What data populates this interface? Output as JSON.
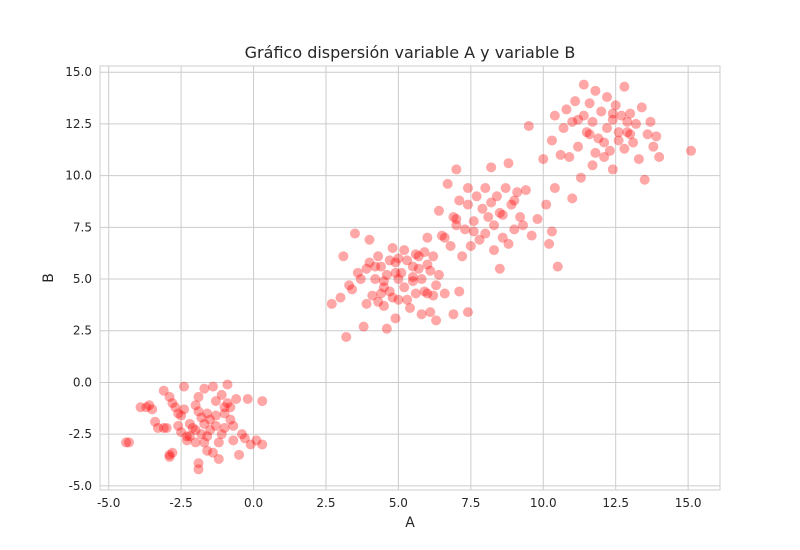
{
  "chart_data": {
    "type": "scatter",
    "title": "Gráfico dispersión variable A y variable B",
    "xlabel": "A",
    "ylabel": "B",
    "xlim": [
      -5.3,
      16.1
    ],
    "ylim": [
      -5.2,
      15.3
    ],
    "xticks": [
      "-5.0",
      "-2.5",
      "0.0",
      "2.5",
      "5.0",
      "7.5",
      "10.0",
      "12.5",
      "15.0"
    ],
    "yticks": [
      "-5.0",
      "-2.5",
      "0.0",
      "2.5",
      "5.0",
      "7.5",
      "10.0",
      "12.5",
      "15.0"
    ],
    "grid": true,
    "marker_color": "#ff0000",
    "marker_alpha": 0.35,
    "series": [
      {
        "points": [
          [
            -4.4,
            -2.9
          ],
          [
            -4.3,
            -2.9
          ],
          [
            -3.9,
            -1.2
          ],
          [
            -3.7,
            -1.2
          ],
          [
            -3.6,
            -1.1
          ],
          [
            -3.5,
            -1.3
          ],
          [
            -3.3,
            -2.2
          ],
          [
            -3.1,
            -0.4
          ],
          [
            -3.0,
            -2.2
          ],
          [
            -2.9,
            -3.5
          ],
          [
            -2.9,
            -3.6
          ],
          [
            -2.8,
            -3.4
          ],
          [
            -2.9,
            -0.7
          ],
          [
            -2.8,
            -1.0
          ],
          [
            -2.6,
            -2.1
          ],
          [
            -2.5,
            -1.6
          ],
          [
            -2.5,
            -2.4
          ],
          [
            -2.4,
            -0.2
          ],
          [
            -2.4,
            -1.3
          ],
          [
            -2.3,
            -2.8
          ],
          [
            -2.2,
            -2.6
          ],
          [
            -2.1,
            -2.2
          ],
          [
            -2.0,
            -2.9
          ],
          [
            -2.0,
            -1.1
          ],
          [
            -1.9,
            -0.7
          ],
          [
            -1.9,
            -4.2
          ],
          [
            -1.9,
            -3.9
          ],
          [
            -1.8,
            -1.7
          ],
          [
            -1.8,
            -2.5
          ],
          [
            -1.7,
            -0.3
          ],
          [
            -1.7,
            -2.0
          ],
          [
            -1.6,
            -1.5
          ],
          [
            -1.6,
            -2.6
          ],
          [
            -1.5,
            -1.8
          ],
          [
            -1.5,
            -2.3
          ],
          [
            -1.4,
            -0.2
          ],
          [
            -1.4,
            -3.4
          ],
          [
            -1.3,
            -0.9
          ],
          [
            -1.3,
            -1.6
          ],
          [
            -1.2,
            -2.9
          ],
          [
            -1.2,
            -3.7
          ],
          [
            -1.1,
            -2.5
          ],
          [
            -1.0,
            -1.2
          ],
          [
            -1.0,
            -2.2
          ],
          [
            -0.9,
            -0.1
          ],
          [
            -0.9,
            -1.0
          ],
          [
            -0.8,
            -1.8
          ],
          [
            -0.7,
            -2.8
          ],
          [
            -0.6,
            -0.8
          ],
          [
            -0.5,
            -3.5
          ],
          [
            -0.4,
            -2.5
          ],
          [
            -0.3,
            -2.7
          ],
          [
            -0.2,
            -0.8
          ],
          [
            -0.1,
            -3.0
          ],
          [
            0.1,
            -2.8
          ],
          [
            0.3,
            -0.9
          ],
          [
            0.3,
            -3.0
          ],
          [
            -2.2,
            -2.0
          ],
          [
            -1.9,
            -1.4
          ],
          [
            -2.6,
            -1.5
          ],
          [
            -1.0,
            -1.5
          ],
          [
            -2.0,
            -2.3
          ],
          [
            -1.6,
            -3.3
          ],
          [
            -3.4,
            -1.9
          ],
          [
            -0.7,
            -2.1
          ],
          [
            -2.7,
            -1.2
          ],
          [
            -1.3,
            -2.1
          ],
          [
            -0.8,
            -1.2
          ],
          [
            -2.3,
            -2.6
          ],
          [
            -1.7,
            -2.9
          ],
          [
            -1.1,
            -0.6
          ],
          [
            -3.1,
            -2.2
          ],
          [
            2.7,
            3.8
          ],
          [
            3.0,
            4.1
          ],
          [
            3.1,
            6.1
          ],
          [
            3.2,
            2.2
          ],
          [
            3.3,
            4.7
          ],
          [
            3.4,
            4.5
          ],
          [
            3.5,
            7.2
          ],
          [
            3.6,
            5.3
          ],
          [
            3.8,
            2.7
          ],
          [
            3.9,
            3.8
          ],
          [
            4.0,
            5.8
          ],
          [
            4.0,
            6.9
          ],
          [
            4.1,
            4.2
          ],
          [
            4.2,
            5.0
          ],
          [
            4.3,
            3.9
          ],
          [
            4.3,
            6.1
          ],
          [
            4.4,
            5.6
          ],
          [
            4.5,
            3.7
          ],
          [
            4.5,
            4.9
          ],
          [
            4.6,
            2.6
          ],
          [
            4.6,
            5.2
          ],
          [
            4.7,
            4.4
          ],
          [
            4.8,
            6.5
          ],
          [
            4.8,
            4.1
          ],
          [
            4.9,
            3.1
          ],
          [
            4.9,
            5.8
          ],
          [
            5.0,
            4.0
          ],
          [
            5.1,
            5.3
          ],
          [
            5.2,
            6.4
          ],
          [
            5.2,
            4.6
          ],
          [
            5.3,
            5.9
          ],
          [
            5.4,
            3.6
          ],
          [
            5.5,
            4.9
          ],
          [
            5.5,
            5.6
          ],
          [
            5.6,
            4.3
          ],
          [
            5.7,
            6.1
          ],
          [
            5.8,
            3.3
          ],
          [
            5.8,
            5.0
          ],
          [
            5.9,
            4.4
          ],
          [
            6.0,
            5.7
          ],
          [
            6.0,
            7.0
          ],
          [
            6.1,
            3.4
          ],
          [
            6.2,
            4.2
          ],
          [
            6.2,
            6.1
          ],
          [
            6.3,
            3.0
          ],
          [
            6.4,
            5.2
          ],
          [
            6.5,
            7.1
          ],
          [
            6.6,
            4.3
          ],
          [
            6.9,
            3.3
          ],
          [
            7.1,
            4.4
          ],
          [
            7.4,
            3.4
          ],
          [
            5.6,
            6.2
          ],
          [
            4.7,
            5.9
          ],
          [
            5.0,
            5.0
          ],
          [
            4.4,
            4.3
          ],
          [
            3.9,
            5.5
          ],
          [
            5.9,
            6.3
          ],
          [
            6.1,
            5.4
          ],
          [
            5.3,
            4.0
          ],
          [
            4.9,
            5.3
          ],
          [
            5.7,
            5.5
          ],
          [
            4.2,
            5.6
          ],
          [
            6.3,
            4.7
          ],
          [
            5.0,
            6.0
          ],
          [
            3.7,
            5.0
          ],
          [
            4.5,
            4.6
          ],
          [
            6.0,
            4.3
          ],
          [
            5.5,
            5.1
          ],
          [
            6.4,
            8.3
          ],
          [
            6.6,
            7.0
          ],
          [
            6.7,
            9.6
          ],
          [
            6.8,
            6.6
          ],
          [
            6.9,
            8.0
          ],
          [
            7.0,
            10.3
          ],
          [
            7.0,
            7.6
          ],
          [
            7.1,
            8.8
          ],
          [
            7.2,
            6.1
          ],
          [
            7.3,
            7.4
          ],
          [
            7.4,
            8.6
          ],
          [
            7.5,
            6.6
          ],
          [
            7.6,
            7.8
          ],
          [
            7.7,
            9.0
          ],
          [
            7.8,
            6.9
          ],
          [
            7.9,
            8.4
          ],
          [
            8.0,
            9.4
          ],
          [
            8.0,
            7.2
          ],
          [
            8.1,
            8.0
          ],
          [
            8.2,
            10.4
          ],
          [
            8.3,
            6.4
          ],
          [
            8.3,
            7.6
          ],
          [
            8.4,
            9.0
          ],
          [
            8.5,
            5.5
          ],
          [
            8.5,
            8.2
          ],
          [
            8.6,
            7.0
          ],
          [
            8.7,
            9.4
          ],
          [
            8.8,
            6.7
          ],
          [
            8.8,
            10.6
          ],
          [
            8.9,
            8.6
          ],
          [
            9.0,
            7.4
          ],
          [
            9.1,
            9.2
          ],
          [
            9.2,
            8.0
          ],
          [
            9.3,
            7.6
          ],
          [
            9.4,
            9.3
          ],
          [
            9.5,
            12.4
          ],
          [
            9.6,
            7.1
          ],
          [
            9.8,
            7.9
          ],
          [
            10.0,
            10.8
          ],
          [
            10.1,
            8.6
          ],
          [
            10.2,
            6.7
          ],
          [
            10.3,
            7.3
          ],
          [
            10.4,
            9.4
          ],
          [
            10.5,
            5.6
          ],
          [
            7.6,
            7.3
          ],
          [
            8.2,
            8.7
          ],
          [
            7.0,
            7.9
          ],
          [
            9.0,
            8.8
          ],
          [
            8.6,
            8.1
          ],
          [
            7.4,
            9.4
          ],
          [
            10.3,
            11.7
          ],
          [
            10.4,
            12.9
          ],
          [
            10.6,
            11.0
          ],
          [
            10.7,
            12.3
          ],
          [
            10.8,
            13.2
          ],
          [
            10.9,
            10.9
          ],
          [
            11.0,
            12.6
          ],
          [
            11.0,
            8.9
          ],
          [
            11.1,
            13.6
          ],
          [
            11.2,
            11.4
          ],
          [
            11.3,
            9.9
          ],
          [
            11.4,
            12.9
          ],
          [
            11.4,
            14.4
          ],
          [
            11.5,
            12.1
          ],
          [
            11.6,
            13.5
          ],
          [
            11.7,
            10.5
          ],
          [
            11.7,
            12.6
          ],
          [
            11.8,
            14.1
          ],
          [
            11.9,
            11.8
          ],
          [
            12.0,
            13.1
          ],
          [
            12.1,
            10.9
          ],
          [
            12.2,
            12.3
          ],
          [
            12.2,
            13.8
          ],
          [
            12.3,
            11.2
          ],
          [
            12.4,
            12.7
          ],
          [
            12.4,
            10.3
          ],
          [
            12.5,
            13.4
          ],
          [
            12.6,
            11.7
          ],
          [
            12.7,
            12.9
          ],
          [
            12.8,
            11.3
          ],
          [
            12.8,
            14.3
          ],
          [
            12.9,
            12.1
          ],
          [
            13.0,
            13.0
          ],
          [
            13.1,
            11.6
          ],
          [
            13.2,
            12.5
          ],
          [
            13.3,
            10.8
          ],
          [
            13.4,
            13.3
          ],
          [
            13.5,
            9.8
          ],
          [
            13.6,
            12.0
          ],
          [
            13.7,
            12.6
          ],
          [
            13.8,
            11.4
          ],
          [
            13.9,
            11.9
          ],
          [
            14.0,
            10.9
          ],
          [
            15.1,
            11.2
          ],
          [
            12.6,
            12.1
          ],
          [
            11.6,
            12.0
          ],
          [
            12.9,
            12.6
          ],
          [
            12.1,
            11.6
          ],
          [
            11.2,
            12.7
          ],
          [
            13.0,
            12.0
          ],
          [
            11.8,
            11.1
          ],
          [
            12.4,
            13.0
          ]
        ]
      }
    ]
  }
}
